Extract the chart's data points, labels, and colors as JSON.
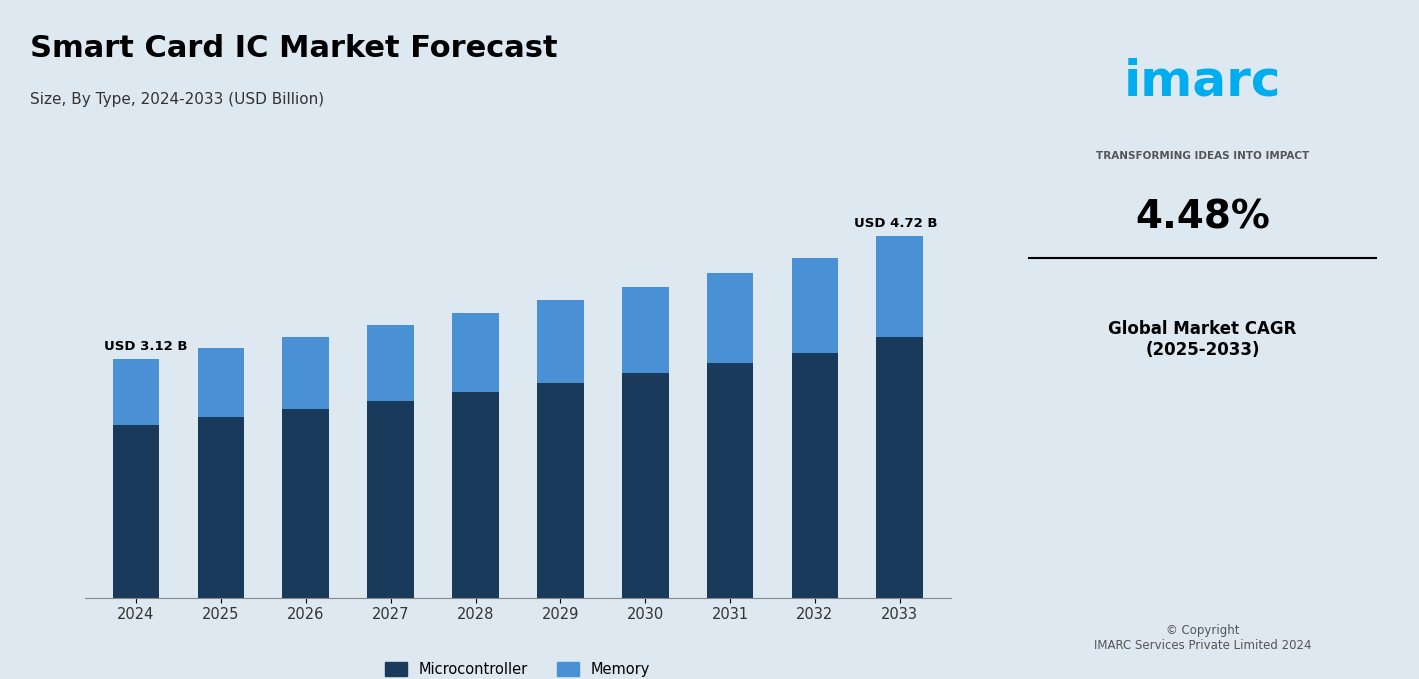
{
  "title": "Smart Card IC Market Forecast",
  "subtitle": "Size, By Type, 2024-2033 (USD Billion)",
  "years": [
    2024,
    2025,
    2026,
    2027,
    2028,
    2029,
    2030,
    2031,
    2032,
    2033
  ],
  "microcontroller": [
    2.25,
    2.38,
    2.52,
    2.67,
    2.82,
    2.98,
    3.15,
    3.32,
    3.5,
    3.69
  ],
  "memory": [
    0.87,
    0.92,
    0.97,
    1.03,
    1.09,
    1.15,
    1.22,
    1.29,
    1.36,
    1.03
  ],
  "total_2024": "USD 3.12 B",
  "total_2033": "USD 4.72 B",
  "color_microcontroller": "#1a3a5c",
  "color_memory": "#4a90d4",
  "bg_color": "#dde8f0",
  "chart_area_bg": "#dde8f0",
  "legend_microcontroller": "Microcontroller",
  "legend_memory": "Memory",
  "cagr_text": "4.48%",
  "cagr_label": "Global Market CAGR\n(2025-2033)",
  "copyright_text": "© Copyright\nIMARC Services Private Limited 2024",
  "right_panel_bg": "#ffffff"
}
